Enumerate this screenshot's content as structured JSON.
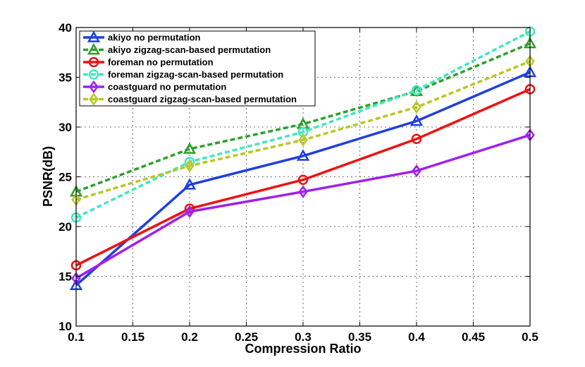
{
  "chart_data": {
    "type": "line",
    "title": "",
    "xlabel": "Compression Ratio",
    "ylabel": "PSNR(dB)",
    "xlim": [
      0.1,
      0.5
    ],
    "ylim": [
      10,
      40
    ],
    "xticks": [
      0.1,
      0.15,
      0.2,
      0.25,
      0.3,
      0.35,
      0.4,
      0.45,
      0.5
    ],
    "xtick_labels": [
      "0.1",
      "0.15",
      "0.2",
      "0.25",
      "0.3",
      "0.35",
      "0.4",
      "0.45",
      "0.5"
    ],
    "yticks": [
      10,
      15,
      20,
      25,
      30,
      35,
      40
    ],
    "ytick_labels": [
      "10",
      "15",
      "20",
      "25",
      "30",
      "35",
      "40"
    ],
    "grid": true,
    "legend_position": "top-left",
    "x": [
      0.1,
      0.2,
      0.3,
      0.4,
      0.5
    ],
    "series": [
      {
        "name": "akiyo no permutation",
        "color": "#1f3fe0",
        "style": "solid",
        "marker": "triangle",
        "values": [
          14.1,
          24.2,
          27.1,
          30.6,
          35.5
        ]
      },
      {
        "name": "akiyo zigzag-scan-based permutation",
        "color": "#2ca02c",
        "style": "dashed",
        "marker": "triangle",
        "values": [
          23.5,
          27.8,
          30.3,
          33.6,
          38.4
        ]
      },
      {
        "name": "foreman no permutation",
        "color": "#ee1111",
        "style": "solid",
        "marker": "circle",
        "values": [
          16.1,
          21.8,
          24.7,
          28.8,
          33.8
        ]
      },
      {
        "name": "foreman zigzag-scan-based permutation",
        "color": "#40e8c0",
        "style": "dashed",
        "marker": "circle",
        "values": [
          20.9,
          26.5,
          29.5,
          33.7,
          39.6
        ]
      },
      {
        "name": "coastguard no permutation",
        "color": "#a020f0",
        "style": "solid",
        "marker": "diamond",
        "values": [
          14.8,
          21.5,
          23.5,
          25.6,
          29.2
        ]
      },
      {
        "name": "coastguard zigzag-scan-based permutation",
        "color": "#b8c820",
        "style": "dashed",
        "marker": "diamond",
        "values": [
          22.7,
          26.1,
          28.7,
          32.0,
          36.6
        ]
      }
    ]
  }
}
